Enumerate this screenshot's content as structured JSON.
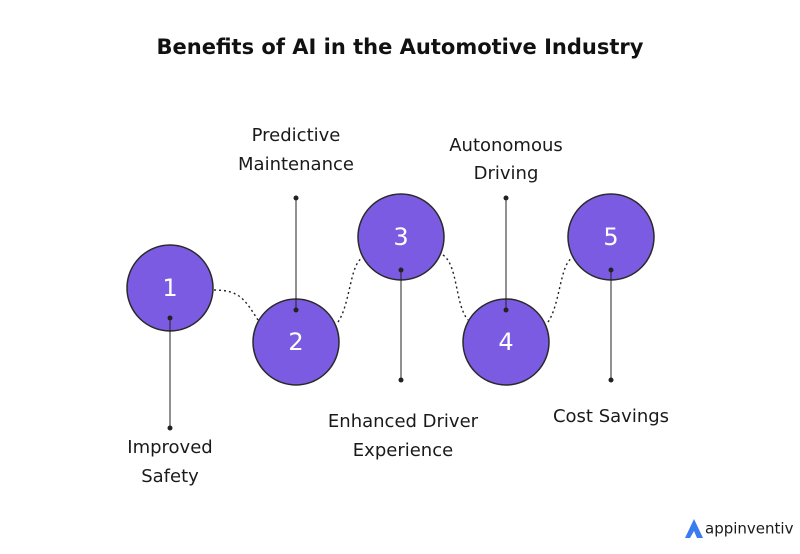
{
  "title": "Benefits of AI in the Automotive Industry",
  "nodes": [
    {
      "number": "1",
      "label_lines": [
        "Improved",
        "Safety"
      ]
    },
    {
      "number": "2",
      "label_lines": [
        "Predictive",
        "Maintenance"
      ]
    },
    {
      "number": "3",
      "label_lines": [
        "Enhanced Driver",
        "Experience"
      ]
    },
    {
      "number": "4",
      "label_lines": [
        "Autonomous",
        "Driving"
      ]
    },
    {
      "number": "5",
      "label_lines": [
        "Cost Savings"
      ]
    }
  ],
  "brand": "appinventiv"
}
